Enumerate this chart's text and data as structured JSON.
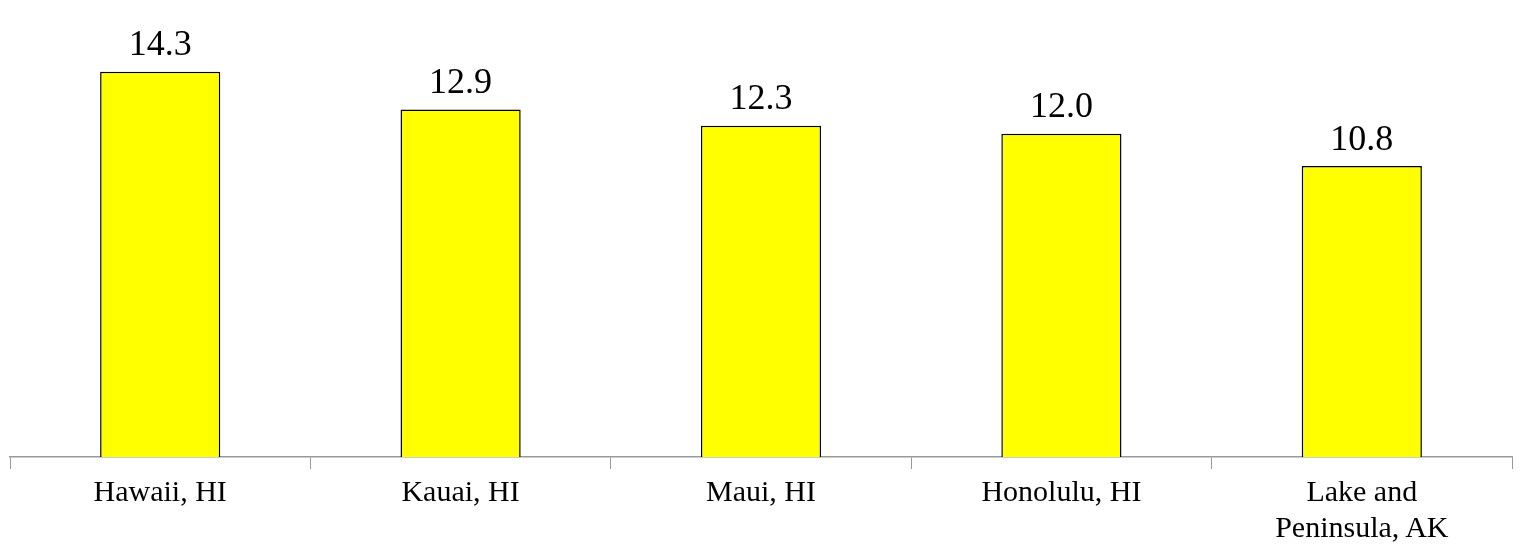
{
  "chart_data": {
    "type": "bar",
    "categories": [
      "Hawaii, HI",
      "Kauai, HI",
      "Maui, HI",
      "Honolulu, HI",
      "Lake and Peninsula, AK"
    ],
    "values": [
      14.3,
      12.9,
      12.3,
      12.0,
      10.8
    ],
    "value_labels": [
      "14.3",
      "12.9",
      "12.3",
      "12.0",
      "10.8"
    ],
    "color": "#ffff00",
    "grid": false,
    "legend": false
  }
}
